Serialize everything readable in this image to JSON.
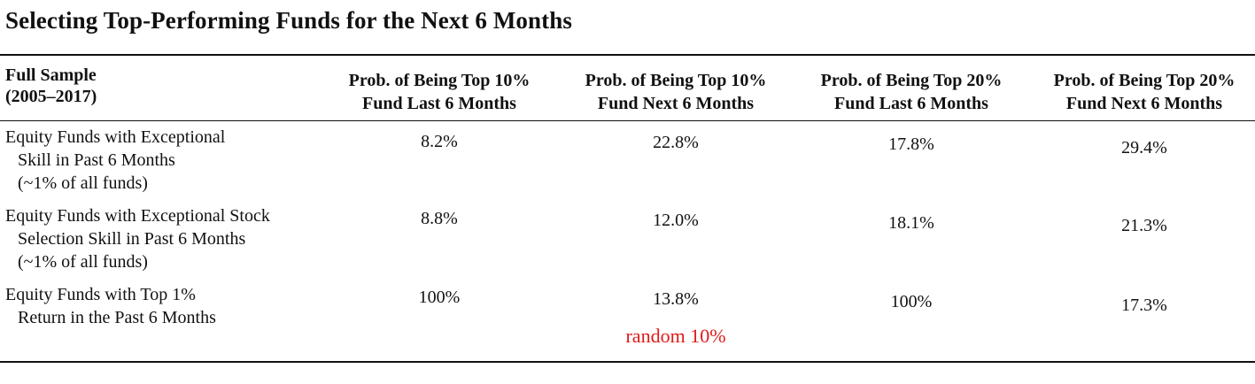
{
  "title": "Selecting Top-Performing Funds for the Next 6 Months",
  "table": {
    "first_header": [
      "Full Sample",
      "(2005–2017)"
    ],
    "columns": [
      [
        "Prob. of Being Top 10%",
        "Fund Last 6 Months"
      ],
      [
        "Prob. of Being Top 10%",
        "Fund Next 6 Months"
      ],
      [
        "Prob. of Being Top 20%",
        "Fund Last 6 Months"
      ],
      [
        "Prob. of Being Top 20%",
        "Fund Next 6 Months"
      ]
    ],
    "rows": [
      {
        "label": [
          "Equity Funds with Exceptional",
          "Skill in Past 6 Months",
          "(~1% of all funds)"
        ],
        "values": [
          "8.2%",
          "22.8%",
          "17.8%",
          "29.4%"
        ]
      },
      {
        "label": [
          "Equity Funds with Exceptional Stock",
          "Selection Skill in Past 6 Months",
          "(~1% of all funds)"
        ],
        "values": [
          "8.8%",
          "12.0%",
          "18.1%",
          "21.3%"
        ]
      },
      {
        "label": [
          "Equity Funds with Top 1%",
          "Return in the Past 6 Months"
        ],
        "values": [
          "100%",
          "13.8%",
          "100%",
          "17.3%"
        ]
      }
    ],
    "annotation": "random 10%"
  },
  "colors": {
    "annotation": "#e01919",
    "text": "#111111"
  }
}
